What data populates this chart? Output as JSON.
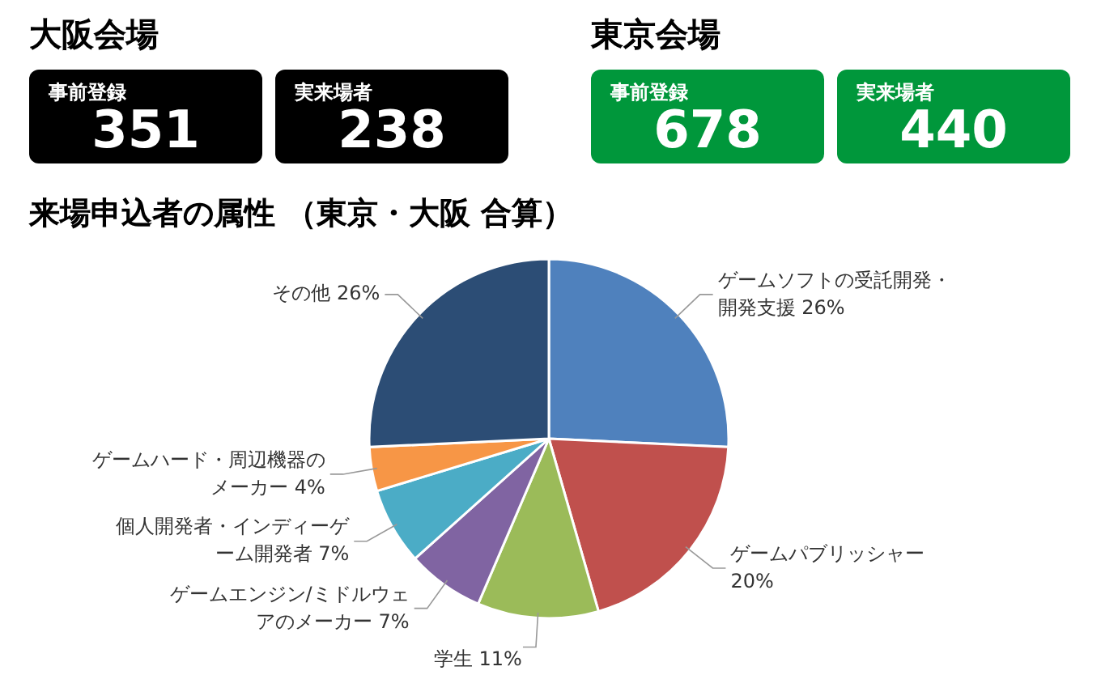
{
  "chart_data": [
    {
      "type": "other",
      "title": "大阪会場",
      "categories": [
        "事前登録",
        "実来場者"
      ],
      "values": [
        351,
        238
      ],
      "data_labels": true,
      "colors": [
        "#000000",
        "#000000"
      ]
    },
    {
      "type": "other",
      "title": "東京会場",
      "categories": [
        "事前登録",
        "実来場者"
      ],
      "values": [
        678,
        440
      ],
      "data_labels": true,
      "colors": [
        "#00973b",
        "#00973b"
      ]
    },
    {
      "type": "pie",
      "title": "来場申込者の属性 （東京・大阪 合算）",
      "categories": [
        "ゲームソフトの受託開発・開発支援",
        "ゲームパブリッシャー",
        "学生",
        "ゲームエンジン/ミドルウェアのメーカー",
        "個人開発者・インディーゲーム開発者",
        "ゲームハード・周辺機器のメーカー",
        "その他"
      ],
      "values": [
        26,
        20,
        11,
        7,
        7,
        4,
        26
      ],
      "value_labels": [
        "26%",
        "20%",
        "11%",
        "7%",
        "7%",
        "4%",
        "26%"
      ],
      "colors": [
        "#4f81bd",
        "#c0504d",
        "#9bbb59",
        "#8064a2",
        "#4bacc6",
        "#f79646",
        "#2c4d75"
      ]
    }
  ]
}
